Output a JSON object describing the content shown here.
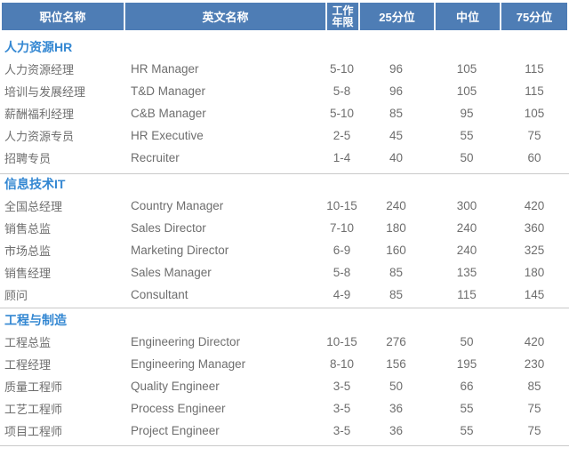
{
  "table": {
    "columns": [
      {
        "label": "职位名称"
      },
      {
        "label": "英文名称"
      },
      {
        "label": "工作\n年限"
      },
      {
        "label": "25分位"
      },
      {
        "label": "中位"
      },
      {
        "label": "75分位"
      }
    ],
    "sections": [
      {
        "title": "人力资源HR",
        "rows": [
          {
            "cn": "人力资源经理",
            "en": "HR Manager",
            "years": "5-10",
            "p25": "96",
            "median": "105",
            "p75": "115"
          },
          {
            "cn": "培训与发展经理",
            "en": "T&D Manager",
            "years": "5-8",
            "p25": "96",
            "median": "105",
            "p75": "115"
          },
          {
            "cn": "薪酬福利经理",
            "en": "C&B Manager",
            "years": "5-10",
            "p25": "85",
            "median": "95",
            "p75": "105"
          },
          {
            "cn": "人力资源专员",
            "en": "HR Executive",
            "years": "2-5",
            "p25": "45",
            "median": "55",
            "p75": "75"
          },
          {
            "cn": "招聘专员",
            "en": "Recruiter",
            "years": "1-4",
            "p25": "40",
            "median": "50",
            "p75": "60"
          }
        ]
      },
      {
        "title": "信息技术IT",
        "rows": [
          {
            "cn": "全国总经理",
            "en": "Country Manager",
            "years": "10-15",
            "p25": "240",
            "median": "300",
            "p75": "420"
          },
          {
            "cn": "销售总监",
            "en": "Sales Director",
            "years": "7-10",
            "p25": "180",
            "median": "240",
            "p75": "360"
          },
          {
            "cn": "市场总监",
            "en": "Marketing Director",
            "years": "6-9",
            "p25": "160",
            "median": "240",
            "p75": "325"
          },
          {
            "cn": "销售经理",
            "en": "Sales Manager",
            "years": "5-8",
            "p25": "85",
            "median": "135",
            "p75": "180"
          },
          {
            "cn": "顾问",
            "en": "Consultant",
            "years": "4-9",
            "p25": "85",
            "median": "115",
            "p75": "145"
          }
        ]
      },
      {
        "title": "工程与制造",
        "rows": [
          {
            "cn": "工程总监",
            "en": "Engineering Director",
            "years": "10-15",
            "p25": "276",
            "median": "50",
            "p75": "420"
          },
          {
            "cn": "工程经理",
            "en": "Engineering Manager",
            "years": "8-10",
            "p25": "156",
            "median": "195",
            "p75": "230"
          },
          {
            "cn": "质量工程师",
            "en": "Quality Engineer",
            "years": "3-5",
            "p25": "50",
            "median": "66",
            "p75": "85"
          },
          {
            "cn": "工艺工程师",
            "en": "Process Engineer",
            "years": "3-5",
            "p25": "36",
            "median": "55",
            "p75": "75"
          },
          {
            "cn": "项目工程师",
            "en": "Project Engineer",
            "years": "3-5",
            "p25": "36",
            "median": "55",
            "p75": "75"
          }
        ]
      }
    ]
  },
  "colors": {
    "header_bg": "#4e7db5",
    "header_separator": "#ffffff",
    "section_title_text": "#3387d2",
    "row_text": "#6e6e6e",
    "divider": "#c9c9c9",
    "background": "#ffffff"
  }
}
